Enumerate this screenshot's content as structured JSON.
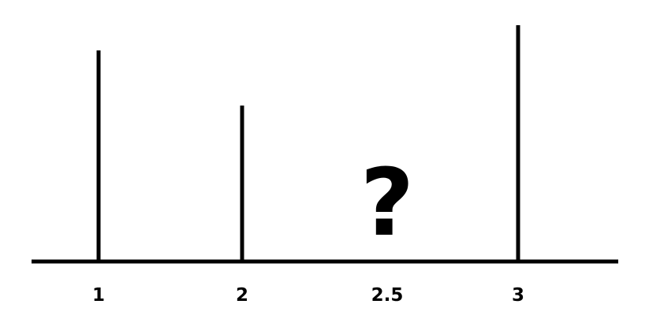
{
  "diagram": {
    "type": "bar",
    "categories": [
      "1",
      "2",
      "2.5",
      "3"
    ],
    "values": [
      268,
      198,
      null,
      300
    ],
    "unknown_category": "2.5",
    "unknown_symbol": "?",
    "colors": {
      "line": "#000000",
      "background": "#ffffff"
    }
  }
}
